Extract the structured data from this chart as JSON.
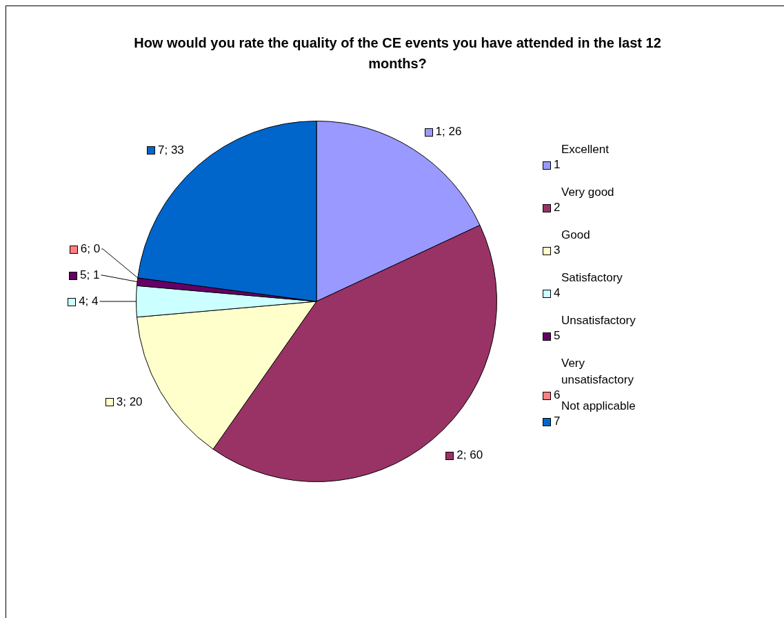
{
  "chart_data": {
    "type": "pie",
    "title": "How would you rate the quality of the CE events you have attended in the last 12 months?",
    "categories": [
      "1",
      "2",
      "3",
      "4",
      "5",
      "6",
      "7"
    ],
    "values": [
      26,
      60,
      20,
      4,
      1,
      0,
      33
    ],
    "colors": [
      "#9999ff",
      "#993366",
      "#ffffcc",
      "#ccffff",
      "#660066",
      "#ff8080",
      "#0066cc"
    ],
    "value_labels": [
      "1; 26",
      "2; 60",
      "3; 20",
      "4; 4",
      "5; 1",
      "6; 0",
      "7; 33"
    ],
    "annotations": [
      "Excellent",
      "Very good",
      "Good",
      "Satisfactory",
      "Unsatisfactory",
      "Very unsatisfactory",
      "Not applicable"
    ],
    "legend": "right"
  }
}
